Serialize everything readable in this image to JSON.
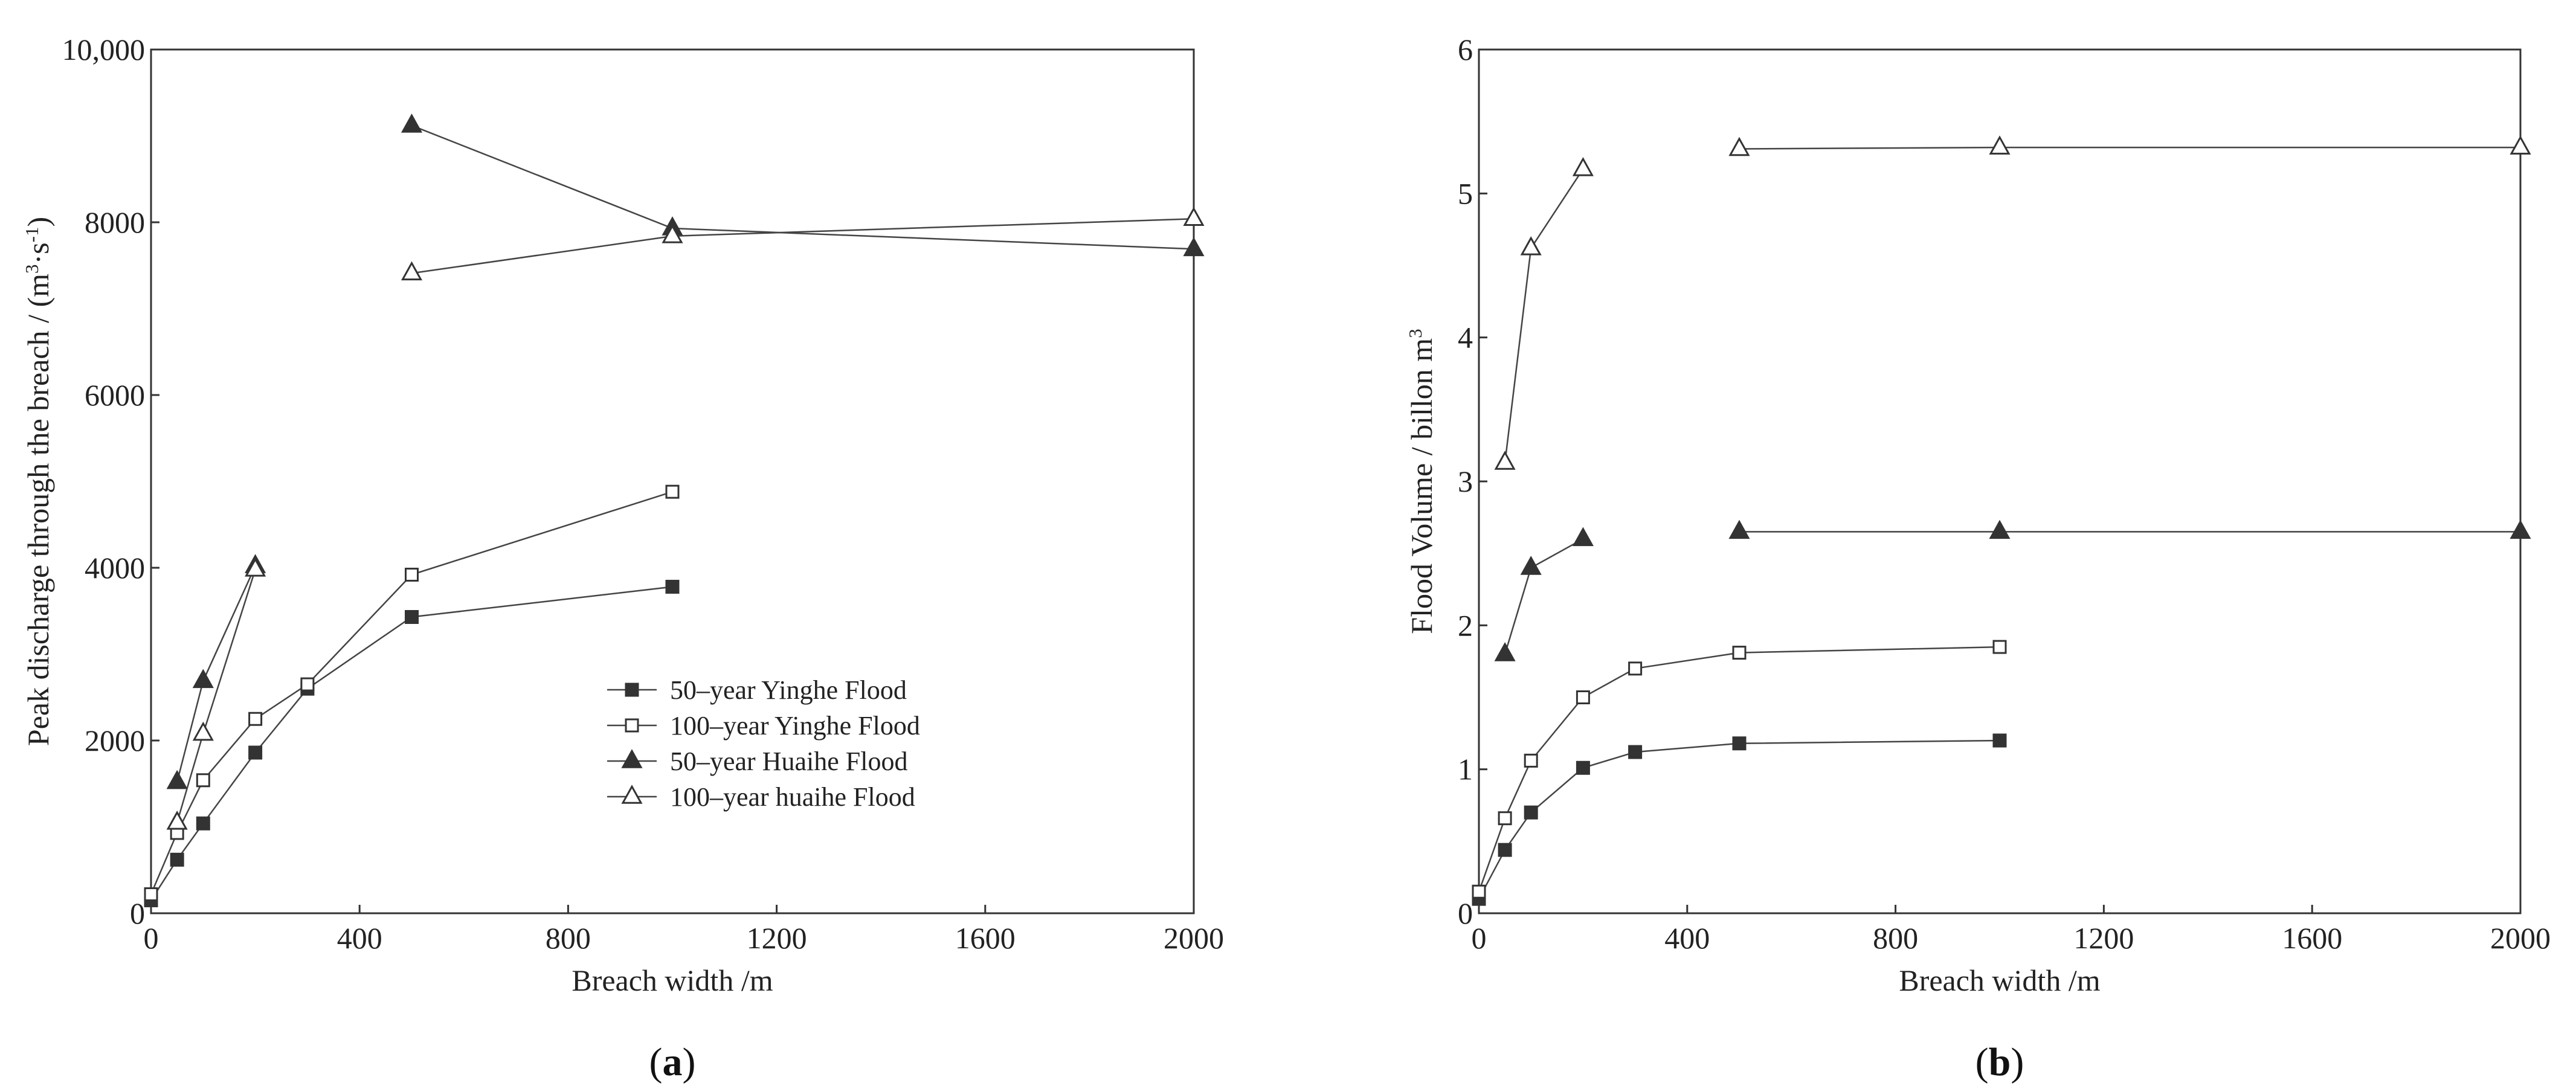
{
  "chart_data": [
    {
      "type": "line",
      "panel_label": "a",
      "xlabel": "Breach width /m",
      "ylabel_main": "Peak discharge through the breach / (m",
      "ylabel_sup1": "3",
      "ylabel_mid": "·s",
      "ylabel_sup2": "-1",
      "ylabel_end": ")",
      "xlim": [
        0,
        2000
      ],
      "ylim": [
        0,
        10000
      ],
      "x_ticks": [
        0,
        400,
        800,
        1200,
        1600,
        2000
      ],
      "x_tick_labels": [
        "0",
        "400",
        "800",
        "1200",
        "1600",
        "2000"
      ],
      "y_ticks": [
        0,
        2000,
        4000,
        6000,
        8000,
        10000
      ],
      "y_tick_labels": [
        "0",
        "2000",
        "4000",
        "6000",
        "8000",
        "10,000"
      ],
      "grid": false,
      "legend_position": "bottom-right",
      "series": [
        {
          "name": "50–year Yinghe Flood",
          "marker": "square-filled",
          "segments": [
            [
              [
                0,
                150
              ],
              [
                50,
                620
              ],
              [
                100,
                1040
              ],
              [
                200,
                1860
              ],
              [
                300,
                2600
              ],
              [
                500,
                3430
              ],
              [
                1000,
                3780
              ]
            ]
          ]
        },
        {
          "name": "100–year Yinghe Flood",
          "marker": "square-open",
          "segments": [
            [
              [
                0,
                220
              ],
              [
                50,
                930
              ],
              [
                100,
                1540
              ],
              [
                200,
                2250
              ],
              [
                300,
                2650
              ],
              [
                500,
                3920
              ],
              [
                1000,
                4880
              ]
            ]
          ]
        },
        {
          "name": "50–year Huaihe Flood",
          "marker": "triangle-filled",
          "segments": [
            [
              [
                50,
                1520
              ],
              [
                100,
                2690
              ],
              [
                200,
                4020
              ]
            ],
            [
              [
                500,
                9120
              ],
              [
                1000,
                7930
              ],
              [
                2000,
                7690
              ]
            ]
          ]
        },
        {
          "name": "100–year huaihe Flood",
          "marker": "triangle-open",
          "segments": [
            [
              [
                50,
                1050
              ],
              [
                100,
                2080
              ],
              [
                200,
                3980
              ]
            ],
            [
              [
                500,
                7410
              ],
              [
                1000,
                7840
              ],
              [
                2000,
                8040
              ]
            ]
          ]
        }
      ]
    },
    {
      "type": "line",
      "panel_label": "b",
      "xlabel": "Breach width /m",
      "ylabel_main": "Flood Volume / billon m",
      "ylabel_sup1": "3",
      "xlim": [
        0,
        2000
      ],
      "ylim": [
        0,
        6
      ],
      "x_ticks": [
        0,
        400,
        800,
        1200,
        1600,
        2000
      ],
      "x_tick_labels": [
        "0",
        "400",
        "800",
        "1200",
        "1600",
        "2000"
      ],
      "y_ticks": [
        0,
        1,
        2,
        3,
        4,
        5,
        6
      ],
      "y_tick_labels": [
        "0",
        "1",
        "2",
        "3",
        "4",
        "5",
        "6"
      ],
      "grid": false,
      "series": [
        {
          "marker": "square-filled",
          "segments": [
            [
              [
                0,
                0.1
              ],
              [
                50,
                0.44
              ],
              [
                100,
                0.7
              ],
              [
                200,
                1.01
              ],
              [
                300,
                1.12
              ],
              [
                500,
                1.18
              ],
              [
                1000,
                1.2
              ]
            ]
          ]
        },
        {
          "marker": "square-open",
          "segments": [
            [
              [
                0,
                0.15
              ],
              [
                50,
                0.66
              ],
              [
                100,
                1.06
              ],
              [
                200,
                1.5
              ],
              [
                300,
                1.7
              ],
              [
                500,
                1.81
              ],
              [
                1000,
                1.85
              ]
            ]
          ]
        },
        {
          "marker": "triangle-filled",
          "segments": [
            [
              [
                50,
                1.8
              ],
              [
                100,
                2.4
              ],
              [
                200,
                2.6
              ]
            ],
            [
              [
                500,
                2.65
              ],
              [
                1000,
                2.65
              ],
              [
                2000,
                2.65
              ]
            ]
          ]
        },
        {
          "marker": "triangle-open",
          "segments": [
            [
              [
                50,
                3.13
              ],
              [
                100,
                4.62
              ],
              [
                200,
                5.17
              ]
            ],
            [
              [
                500,
                5.31
              ],
              [
                1000,
                5.32
              ],
              [
                2000,
                5.32
              ]
            ]
          ]
        }
      ]
    }
  ]
}
